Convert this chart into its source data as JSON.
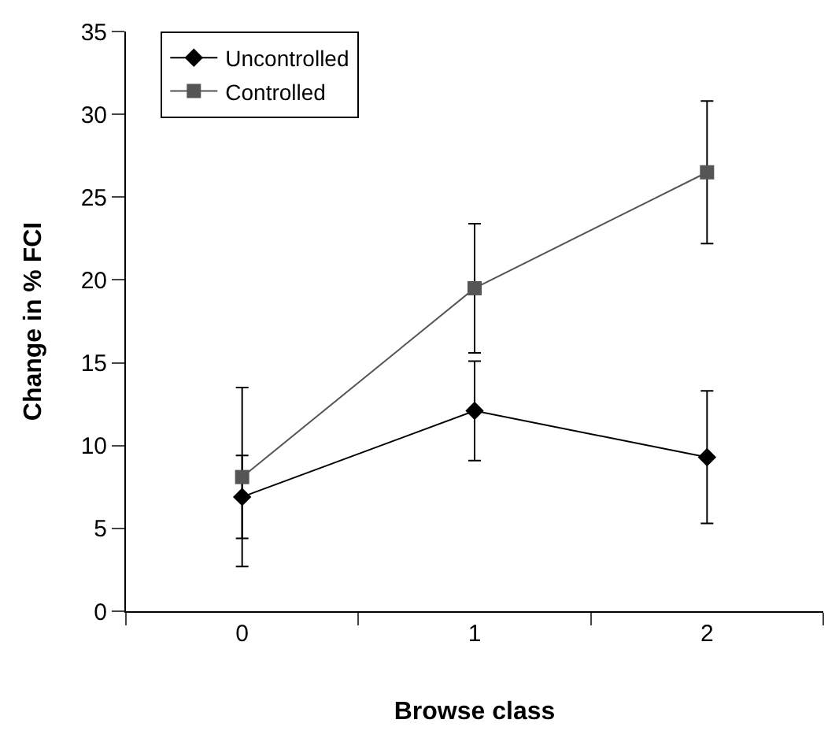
{
  "chart_data": {
    "type": "line",
    "xlabel": "Browse class",
    "ylabel": "Change in % FCI",
    "categories": [
      "0",
      "1",
      "2"
    ],
    "series": [
      {
        "name": "Uncontrolled",
        "color": "#000000",
        "marker": "diamond",
        "values": [
          6.9,
          12.1,
          9.3
        ],
        "errors": [
          2.5,
          3.0,
          4.0
        ]
      },
      {
        "name": "Controlled",
        "color": "#555555",
        "marker": "square",
        "values": [
          8.1,
          19.5,
          26.5
        ],
        "errors": [
          5.4,
          3.9,
          4.3
        ]
      }
    ],
    "ylim": [
      0,
      35
    ],
    "yticks": [
      0,
      5,
      10,
      15,
      20,
      25,
      30,
      35
    ],
    "legend": "top left",
    "line_style": "solid"
  }
}
